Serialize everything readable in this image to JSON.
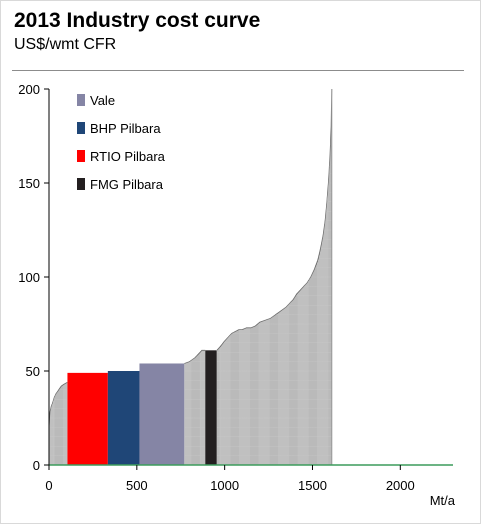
{
  "title": "2013 Industry cost curve",
  "subtitle": "US$/wmt CFR",
  "chart_data": {
    "type": "bar",
    "subtype": "variable-width cost curve",
    "xlabel": "Mt/a",
    "ylabel": "",
    "xlim": [
      0,
      2300
    ],
    "ylim": [
      0,
      200
    ],
    "x_ticks": [
      0,
      500,
      1000,
      1500,
      2000
    ],
    "y_ticks": [
      0,
      50,
      100,
      150,
      200
    ],
    "grid": false,
    "legend_position": "top-left",
    "legend": [
      {
        "name": "Vale",
        "color": "#8585a5"
      },
      {
        "name": "BHP Pilbara",
        "color": "#1f4677"
      },
      {
        "name": "RTIO Pilbara",
        "color": "#ff0000"
      },
      {
        "name": "FMG Pilbara",
        "color": "#231f20"
      }
    ],
    "highlighted_producers": [
      {
        "name": "RTIO Pilbara",
        "x_start": 105,
        "x_end": 335,
        "cost": 49,
        "color": "#ff0000"
      },
      {
        "name": "BHP Pilbara",
        "x_start": 335,
        "x_end": 515,
        "cost": 50,
        "color": "#1f4677"
      },
      {
        "name": "Vale",
        "x_start": 515,
        "x_end": 770,
        "cost": 54,
        "color": "#8585a5"
      },
      {
        "name": "FMG Pilbara",
        "x_start": 890,
        "x_end": 955,
        "cost": 61,
        "color": "#231f20"
      }
    ],
    "curve_points": [
      [
        0,
        20
      ],
      [
        5,
        28
      ],
      [
        12,
        31
      ],
      [
        20,
        33
      ],
      [
        30,
        36
      ],
      [
        40,
        38
      ],
      [
        55,
        40
      ],
      [
        70,
        42
      ],
      [
        85,
        43
      ],
      [
        105,
        44
      ],
      [
        770,
        54
      ],
      [
        800,
        55
      ],
      [
        830,
        57
      ],
      [
        850,
        59
      ],
      [
        870,
        61
      ],
      [
        955,
        61
      ],
      [
        975,
        63
      ],
      [
        1000,
        66
      ],
      [
        1020,
        68
      ],
      [
        1040,
        70
      ],
      [
        1060,
        71
      ],
      [
        1080,
        72
      ],
      [
        1100,
        72
      ],
      [
        1125,
        73
      ],
      [
        1150,
        73
      ],
      [
        1175,
        74
      ],
      [
        1200,
        76
      ],
      [
        1230,
        77
      ],
      [
        1260,
        78
      ],
      [
        1290,
        80
      ],
      [
        1320,
        82
      ],
      [
        1350,
        84
      ],
      [
        1370,
        86
      ],
      [
        1390,
        88
      ],
      [
        1410,
        91
      ],
      [
        1430,
        93
      ],
      [
        1450,
        95
      ],
      [
        1470,
        97
      ],
      [
        1490,
        100
      ],
      [
        1510,
        104
      ],
      [
        1530,
        109
      ],
      [
        1545,
        115
      ],
      [
        1560,
        122
      ],
      [
        1572,
        130
      ],
      [
        1582,
        140
      ],
      [
        1592,
        152
      ],
      [
        1600,
        165
      ],
      [
        1606,
        180
      ],
      [
        1610,
        200
      ]
    ],
    "baseline_end_x": 2300,
    "colors": {
      "curve": "#8c8c8c",
      "baseline": "#3c9b5c",
      "axis": "#000000"
    }
  }
}
